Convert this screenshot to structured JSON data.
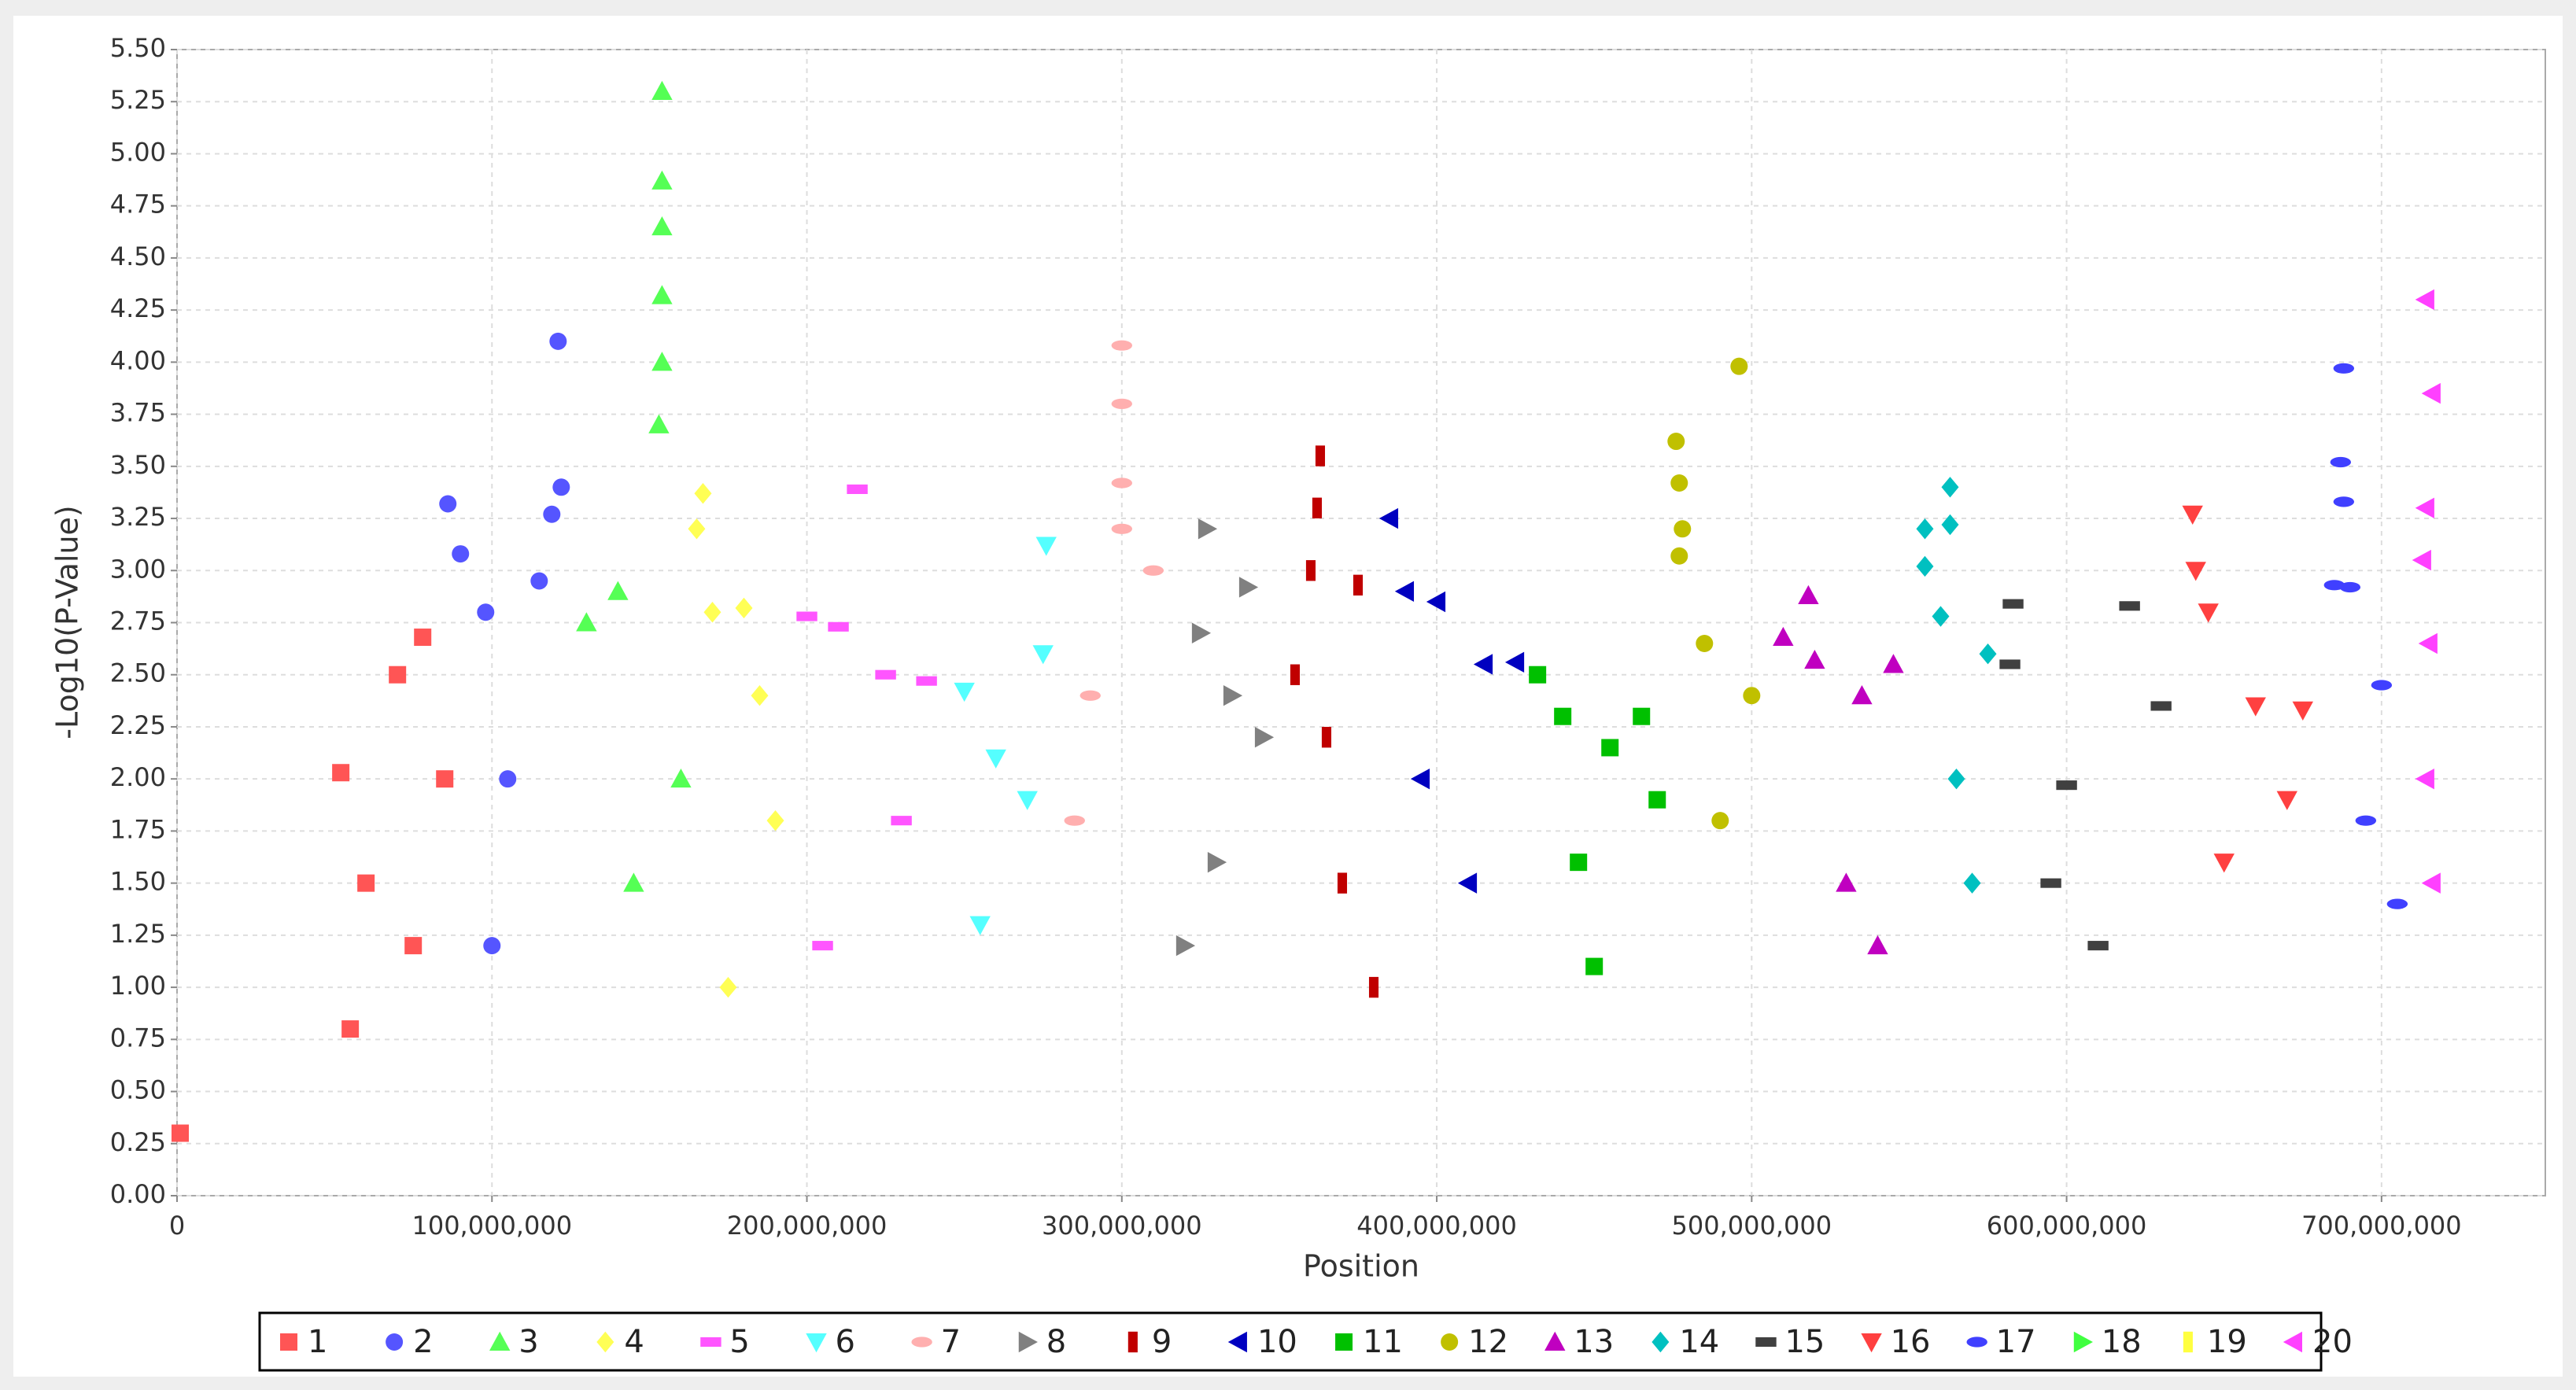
{
  "chart_data": {
    "type": "scatter",
    "x_label": "Position",
    "y_label": "-Log10(P-Value)",
    "xlim": [
      0,
      752000000
    ],
    "ylim": [
      0,
      5.5
    ],
    "xticks": [
      0,
      {
        "value": 100000000,
        "label": "100,000,000"
      },
      {
        "value": 200000000,
        "label": "200,000,000"
      },
      {
        "value": 300000000,
        "label": "300,000,000"
      },
      {
        "value": 400000000,
        "label": "400,000,000"
      },
      {
        "value": 500000000,
        "label": "500,000,000"
      },
      {
        "value": 600000000,
        "label": "600,000,000"
      },
      {
        "value": 700000000,
        "label": "700,000,000"
      }
    ],
    "yticks": [
      {
        "value": 0,
        "label": "0.00"
      },
      {
        "value": 0.25,
        "label": "0.25"
      },
      {
        "value": 0.5,
        "label": "0.50"
      },
      {
        "value": 0.75,
        "label": "0.75"
      },
      {
        "value": 1,
        "label": "1.00"
      },
      {
        "value": 1.25,
        "label": "1.25"
      },
      {
        "value": 1.5,
        "label": "1.50"
      },
      {
        "value": 1.75,
        "label": "1.75"
      },
      {
        "value": 2,
        "label": "2.00"
      },
      {
        "value": 2.25,
        "label": "2.25"
      },
      {
        "value": 2.5,
        "label": "2.50"
      },
      {
        "value": 2.75,
        "label": "2.75"
      },
      {
        "value": 3,
        "label": "3.00"
      },
      {
        "value": 3.25,
        "label": "3.25"
      },
      {
        "value": 3.5,
        "label": "3.50"
      },
      {
        "value": 3.75,
        "label": "3.75"
      },
      {
        "value": 4,
        "label": "4.00"
      },
      {
        "value": 4.25,
        "label": "4.25"
      },
      {
        "value": 4.5,
        "label": "4.50"
      },
      {
        "value": 4.75,
        "label": "4.75"
      },
      {
        "value": 5,
        "label": "5.00"
      },
      {
        "value": 5.25,
        "label": "5.25"
      },
      {
        "value": 5.5,
        "label": "5.50"
      }
    ],
    "grid": true,
    "legend": "bottom",
    "series": [
      {
        "name": "1",
        "color": "#ff5555",
        "marker": "square",
        "x": [
          1000000,
          52000000,
          55000000,
          60000000,
          70000000,
          75000000,
          78000000,
          85000000
        ],
        "values": [
          0.3,
          2.03,
          0.8,
          1.5,
          2.5,
          1.2,
          2.68,
          2.0
        ]
      },
      {
        "name": "2",
        "color": "#5555ff",
        "marker": "circle",
        "x": [
          86000000,
          90000000,
          98000000,
          100000000,
          105000000,
          115000000,
          119000000,
          121000000,
          122000000
        ],
        "values": [
          3.32,
          3.08,
          2.8,
          1.2,
          2.0,
          2.95,
          3.27,
          4.1,
          3.4
        ]
      },
      {
        "name": "3",
        "color": "#55ff55",
        "marker": "triangle-up",
        "x": [
          130000000,
          140000000,
          145000000,
          153000000,
          154000000,
          154000000,
          154000000,
          154000000,
          154000000,
          160000000
        ],
        "values": [
          2.75,
          2.9,
          1.5,
          3.7,
          4.0,
          4.32,
          4.65,
          4.87,
          5.3,
          2.0
        ]
      },
      {
        "name": "4",
        "color": "#ffff55",
        "marker": "diamond",
        "x": [
          165000000,
          167000000,
          170000000,
          175000000,
          180000000,
          185000000,
          190000000
        ],
        "values": [
          3.2,
          3.37,
          2.8,
          1.0,
          2.82,
          2.4,
          1.8
        ]
      },
      {
        "name": "5",
        "color": "#ff55ff",
        "marker": "rect",
        "x": [
          200000000,
          205000000,
          210000000,
          216000000,
          225000000,
          230000000,
          238000000
        ],
        "values": [
          2.78,
          1.2,
          2.73,
          3.39,
          2.5,
          1.8,
          2.47
        ]
      },
      {
        "name": "6",
        "color": "#55ffff",
        "marker": "triangle-down",
        "x": [
          250000000,
          255000000,
          260000000,
          270000000,
          275000000,
          276000000
        ],
        "values": [
          2.42,
          1.3,
          2.1,
          1.9,
          2.6,
          3.12
        ]
      },
      {
        "name": "7",
        "color": "#ffafaf",
        "marker": "ellipse",
        "x": [
          285000000,
          290000000,
          300000000,
          300000000,
          300000000,
          300000000,
          310000000
        ],
        "values": [
          1.8,
          2.4,
          3.2,
          3.42,
          3.8,
          4.08,
          3.0
        ]
      },
      {
        "name": "8",
        "color": "#808080",
        "marker": "triangle-right",
        "x": [
          320000000,
          325000000,
          327000000,
          330000000,
          335000000,
          340000000,
          345000000
        ],
        "values": [
          1.2,
          2.7,
          3.2,
          1.6,
          2.4,
          2.92,
          2.2
        ]
      },
      {
        "name": "9",
        "color": "#c00000",
        "marker": "rect-v",
        "x": [
          355000000,
          360000000,
          362000000,
          363000000,
          365000000,
          370000000,
          375000000,
          380000000
        ],
        "values": [
          2.5,
          3.0,
          3.3,
          3.55,
          2.2,
          1.5,
          2.93,
          1.0
        ]
      },
      {
        "name": "10",
        "color": "#0000c0",
        "marker": "triangle-left",
        "x": [
          385000000,
          390000000,
          395000000,
          400000000,
          410000000,
          415000000,
          425000000
        ],
        "values": [
          3.25,
          2.9,
          2.0,
          2.85,
          1.5,
          2.55,
          2.56
        ]
      },
      {
        "name": "11",
        "color": "#00c000",
        "marker": "square",
        "x": [
          432000000,
          440000000,
          445000000,
          450000000,
          455000000,
          465000000,
          470000000
        ],
        "values": [
          2.5,
          2.3,
          1.6,
          1.1,
          2.15,
          2.3,
          1.9
        ]
      },
      {
        "name": "12",
        "color": "#c0c000",
        "marker": "circle",
        "x": [
          476000000,
          477000000,
          477000000,
          478000000,
          485000000,
          490000000,
          496000000,
          500000000
        ],
        "values": [
          3.62,
          3.42,
          3.07,
          3.2,
          2.65,
          1.8,
          3.98,
          2.4
        ]
      },
      {
        "name": "13",
        "color": "#c000c0",
        "marker": "triangle-up",
        "x": [
          510000000,
          518000000,
          520000000,
          530000000,
          535000000,
          540000000,
          545000000
        ],
        "values": [
          2.68,
          2.88,
          2.57,
          1.5,
          2.4,
          1.2,
          2.55
        ]
      },
      {
        "name": "14",
        "color": "#00c0c0",
        "marker": "diamond",
        "x": [
          555000000,
          555000000,
          560000000,
          563000000,
          563000000,
          565000000,
          570000000,
          575000000
        ],
        "values": [
          3.2,
          3.02,
          2.78,
          3.4,
          3.22,
          2.0,
          1.5,
          2.6
        ]
      },
      {
        "name": "15",
        "color": "#404040",
        "marker": "rect",
        "x": [
          582000000,
          583000000,
          595000000,
          600000000,
          610000000,
          620000000,
          630000000
        ],
        "values": [
          2.55,
          2.84,
          1.5,
          1.97,
          1.2,
          2.83,
          2.35
        ]
      },
      {
        "name": "16",
        "color": "#ff4040",
        "marker": "triangle-down",
        "x": [
          640000000,
          641000000,
          645000000,
          650000000,
          660000000,
          670000000,
          675000000
        ],
        "values": [
          3.27,
          3.0,
          2.8,
          1.6,
          2.35,
          1.9,
          2.33
        ]
      },
      {
        "name": "17",
        "color": "#4040ff",
        "marker": "ellipse",
        "x": [
          685000000,
          687000000,
          688000000,
          688000000,
          690000000,
          695000000,
          700000000,
          705000000
        ],
        "values": [
          2.93,
          3.52,
          3.97,
          3.33,
          2.92,
          1.8,
          2.45,
          1.4
        ]
      },
      {
        "name": "18",
        "color": "#40ff40",
        "marker": "triangle-right",
        "x": [],
        "values": []
      },
      {
        "name": "19",
        "color": "#ffff40",
        "marker": "rect-v",
        "x": [],
        "values": []
      },
      {
        "name": "20",
        "color": "#ff40ff",
        "marker": "triangle-left",
        "x": [
          713000000,
          714000000,
          714000000,
          714000000,
          715000000,
          716000000,
          716000000
        ],
        "values": [
          3.05,
          4.3,
          3.3,
          2.0,
          2.65,
          3.85,
          1.5
        ]
      }
    ]
  }
}
